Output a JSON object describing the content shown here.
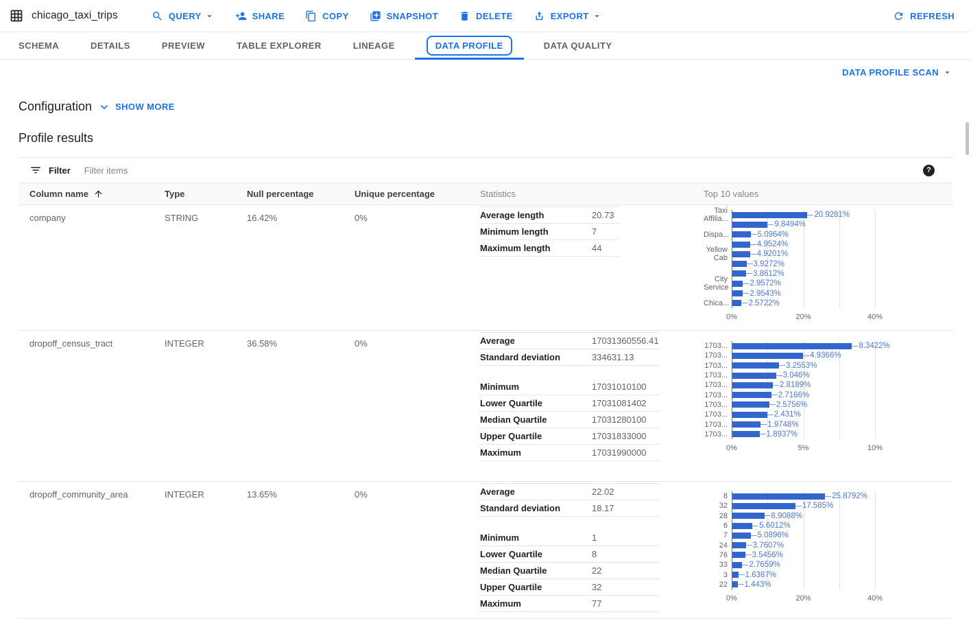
{
  "window": {
    "title": "chicago_taxi_trips"
  },
  "toolbar": {
    "query": "QUERY",
    "share": "SHARE",
    "copy": "COPY",
    "snapshot": "SNAPSHOT",
    "delete": "DELETE",
    "export": "EXPORT",
    "refresh": "REFRESH"
  },
  "tabs": [
    {
      "label": "SCHEMA"
    },
    {
      "label": "DETAILS"
    },
    {
      "label": "PREVIEW"
    },
    {
      "label": "TABLE EXPLORER"
    },
    {
      "label": "LINEAGE"
    },
    {
      "label": "DATA PROFILE",
      "active": true
    },
    {
      "label": "DATA QUALITY"
    }
  ],
  "scan": {
    "label": "DATA PROFILE SCAN"
  },
  "configuration": {
    "title": "Configuration",
    "show_more": "SHOW MORE"
  },
  "results": {
    "title": "Profile results"
  },
  "filter": {
    "label": "Filter",
    "placeholder": "Filter items"
  },
  "table": {
    "headers": {
      "column_name": "Column name",
      "type": "Type",
      "null_percentage": "Null percentage",
      "unique_percentage": "Unique percentage",
      "statistics": "Statistics",
      "top_values": "Top 10 values"
    },
    "rows": [
      {
        "column_name": "company",
        "type": "STRING",
        "null_percentage": "16.42%",
        "unique_percentage": "0%",
        "stats_groups": [
          [
            {
              "label": "Average length",
              "value": "20.73"
            },
            {
              "label": "Minimum length",
              "value": "7"
            },
            {
              "label": "Maximum length",
              "value": "44"
            }
          ]
        ]
      },
      {
        "column_name": "dropoff_census_tract",
        "type": "INTEGER",
        "null_percentage": "36.58%",
        "unique_percentage": "0%",
        "stats_groups": [
          [
            {
              "label": "Average",
              "value": "17031360556.41"
            },
            {
              "label": "Standard deviation",
              "value": "334631.13"
            }
          ],
          [
            {
              "label": "Minimum",
              "value": "17031010100"
            },
            {
              "label": "Lower Quartile",
              "value": "17031081402"
            },
            {
              "label": "Median Quartile",
              "value": "17031280100"
            },
            {
              "label": "Upper Quartile",
              "value": "17031833000"
            },
            {
              "label": "Maximum",
              "value": "17031990000"
            }
          ]
        ]
      },
      {
        "column_name": "dropoff_community_area",
        "type": "INTEGER",
        "null_percentage": "13.65%",
        "unique_percentage": "0%",
        "stats_groups": [
          [
            {
              "label": "Average",
              "value": "22.02"
            },
            {
              "label": "Standard deviation",
              "value": "18.17"
            }
          ],
          [
            {
              "label": "Minimum",
              "value": "1"
            },
            {
              "label": "Lower Quartile",
              "value": "8"
            },
            {
              "label": "Median Quartile",
              "value": "22"
            },
            {
              "label": "Upper Quartile",
              "value": "32"
            },
            {
              "label": "Maximum",
              "value": "77"
            }
          ]
        ]
      }
    ]
  },
  "chart_data": [
    {
      "type": "bar",
      "title": "company — Top 10 values",
      "categories": [
        "Taxi\nAffilia...",
        "",
        "Dispa...",
        "",
        "Yellow\nCab",
        "",
        "",
        "City\nService",
        "",
        "Chica..."
      ],
      "values": [
        20.9281,
        9.8494,
        5.0964,
        4.9524,
        4.9201,
        3.9272,
        3.8612,
        2.9572,
        2.9543,
        2.5722
      ],
      "labels": [
        "20.9281%",
        "9.8494%",
        "5.0964%",
        "4.9524%",
        "4.9201%",
        "3.9272%",
        "3.8612%",
        "2.9572%",
        "2.9543%",
        "2.5722%"
      ],
      "xlim": [
        0,
        40
      ],
      "ticks": [
        {
          "v": 0,
          "label": "0%"
        },
        {
          "v": 20,
          "label": "20%"
        },
        {
          "v": 40,
          "label": "40%"
        }
      ],
      "gridlines": [
        10,
        20,
        30,
        40
      ],
      "bar_color": "#3366cc"
    },
    {
      "type": "bar",
      "title": "dropoff_census_tract — Top 10 values",
      "categories": [
        "1703...",
        "1703...",
        "1703...",
        "1703...",
        "1703...",
        "1703...",
        "1703...",
        "1703...",
        "1703...",
        "1703..."
      ],
      "values": [
        8.3422,
        4.9366,
        3.2553,
        3.046,
        2.8189,
        2.7166,
        2.5756,
        2.431,
        1.9748,
        1.8937
      ],
      "labels": [
        "8.3422%",
        "4.9366%",
        "3.2553%",
        "3.046%",
        "2.8189%",
        "2.7166%",
        "2.5756%",
        "2.431%",
        "1.9748%",
        "1.8937%"
      ],
      "xlim": [
        0,
        10
      ],
      "ticks": [
        {
          "v": 0,
          "label": "0%"
        },
        {
          "v": 5,
          "label": "5%"
        },
        {
          "v": 10,
          "label": "10%"
        }
      ],
      "gridlines": [
        2.5,
        5,
        7.5,
        10
      ],
      "bar_color": "#3366cc"
    },
    {
      "type": "bar",
      "title": "dropoff_community_area — Top 10 values",
      "categories": [
        "8",
        "32",
        "28",
        "6",
        "7",
        "24",
        "76",
        "33",
        "3",
        "22"
      ],
      "values": [
        25.8792,
        17.585,
        8.9088,
        5.6012,
        5.0896,
        3.7607,
        3.5456,
        2.7659,
        1.6387,
        1.443
      ],
      "labels": [
        "25.8792%",
        "17.585%",
        "8.9088%",
        "5.6012%",
        "5.0896%",
        "3.7607%",
        "3.5456%",
        "2.7659%",
        "1.6387%",
        "1.443%"
      ],
      "xlim": [
        0,
        40
      ],
      "ticks": [
        {
          "v": 0,
          "label": "0%"
        },
        {
          "v": 20,
          "label": "20%"
        },
        {
          "v": 40,
          "label": "40%"
        }
      ],
      "gridlines": [
        10,
        20,
        30,
        40
      ],
      "bar_color": "#3366cc"
    }
  ]
}
